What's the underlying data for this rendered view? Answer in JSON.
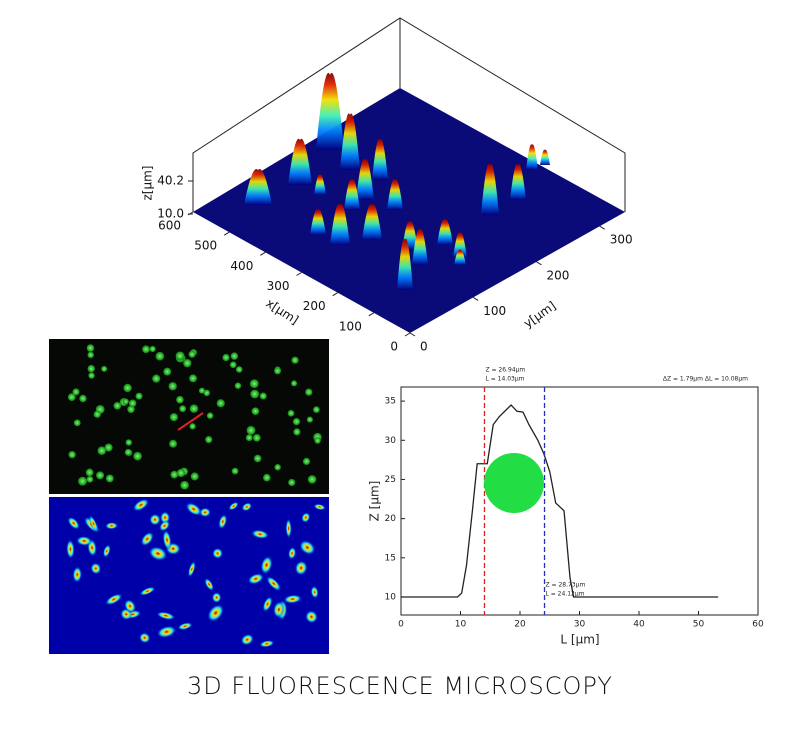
{
  "caption": "3D FLUORESCENCE MICROSCOPY",
  "chart_data": [
    {
      "type": "surface3d",
      "xlabel": "x[μm]",
      "ylabel": "y[μm]",
      "zlabel": "z[μm]",
      "xlim": [
        0,
        600
      ],
      "xticks": [
        0,
        100,
        200,
        300,
        400,
        500,
        600
      ],
      "ylim": [
        0,
        340
      ],
      "yticks": [
        0,
        100,
        200,
        300
      ],
      "zlim": [
        10,
        40.2
      ],
      "zticks": [
        {
          "value": 10,
          "label": "10.0"
        },
        40.2
      ]
    },
    {
      "type": "line",
      "xlabel": "L [μm]",
      "ylabel": "Z [μm]",
      "x": [
        0,
        9.5,
        10.2,
        11,
        12,
        12.8,
        14.5,
        15.5,
        16.5,
        18.5,
        19.5,
        20.5,
        21.5,
        23,
        24,
        25,
        26,
        27.4,
        28.4,
        29,
        53.3
      ],
      "values": [
        10,
        10,
        10.5,
        14,
        21,
        27,
        27,
        32,
        33,
        34.5,
        33.7,
        33.6,
        32,
        30,
        28.3,
        26,
        22,
        21,
        12.5,
        10,
        10
      ],
      "color": "#222222",
      "xlim": [
        0,
        60
      ],
      "xticks": [
        0,
        10,
        20,
        30,
        40,
        50,
        60
      ],
      "ylim": [
        7.7,
        36.8
      ],
      "yticks": [
        10,
        15,
        20,
        25,
        30,
        35
      ],
      "markers": [
        {
          "x": 14.03,
          "color": "#e02020",
          "labels": [
            "Z = 26.94μm",
            "L = 14.03μm"
          ]
        },
        {
          "x": 24.12,
          "color": "#2030c0",
          "labels": [
            "Z = 28.73μm",
            "L = 24.12μm"
          ]
        }
      ],
      "annotation": "ΔZ = 1.79μm ΔL = 10.08μm"
    }
  ]
}
